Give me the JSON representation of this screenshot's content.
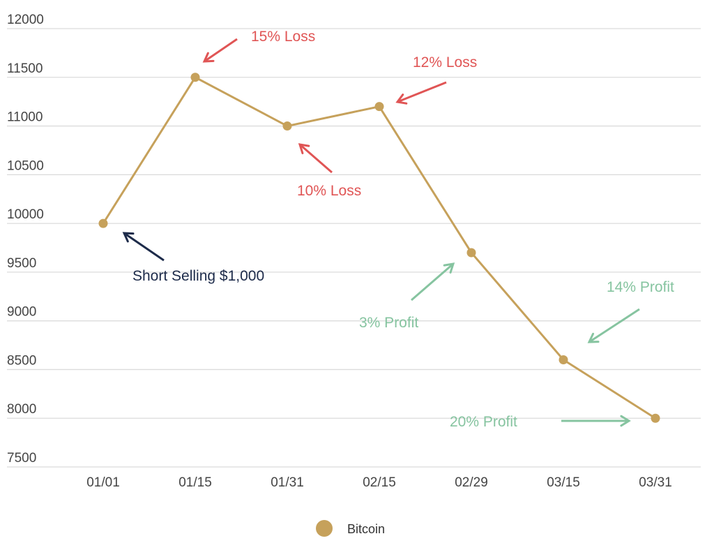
{
  "chart_data": {
    "type": "line",
    "title": "",
    "xlabel": "",
    "ylabel": "",
    "categories": [
      "01/01",
      "01/15",
      "01/31",
      "02/15",
      "02/29",
      "03/15",
      "03/31"
    ],
    "series": [
      {
        "name": "Bitcoin",
        "values": [
          10000,
          11500,
          11000,
          11200,
          9700,
          8600,
          8000
        ],
        "color": "#C6A15B"
      }
    ],
    "ylim": [
      7500,
      12000
    ],
    "yticks": [
      7500,
      8000,
      8500,
      9000,
      9500,
      10000,
      10500,
      11000,
      11500,
      12000
    ],
    "grid": true,
    "legend_position": "bottom",
    "annotations": [
      {
        "text": "Short Selling $1,000",
        "target": "01/01",
        "color": "#1D2B4A"
      },
      {
        "text": "15% Loss",
        "target": "01/15",
        "color": "#E05555"
      },
      {
        "text": "10% Loss",
        "target": "01/31",
        "color": "#E05555"
      },
      {
        "text": "12% Loss",
        "target": "02/15",
        "color": "#E05555"
      },
      {
        "text": "3% Profit",
        "target": "02/29",
        "color": "#86C4A0"
      },
      {
        "text": "14% Profit",
        "target": "03/15",
        "color": "#86C4A0"
      },
      {
        "text": "20% Profit",
        "target": "03/31",
        "color": "#86C4A0"
      }
    ]
  }
}
